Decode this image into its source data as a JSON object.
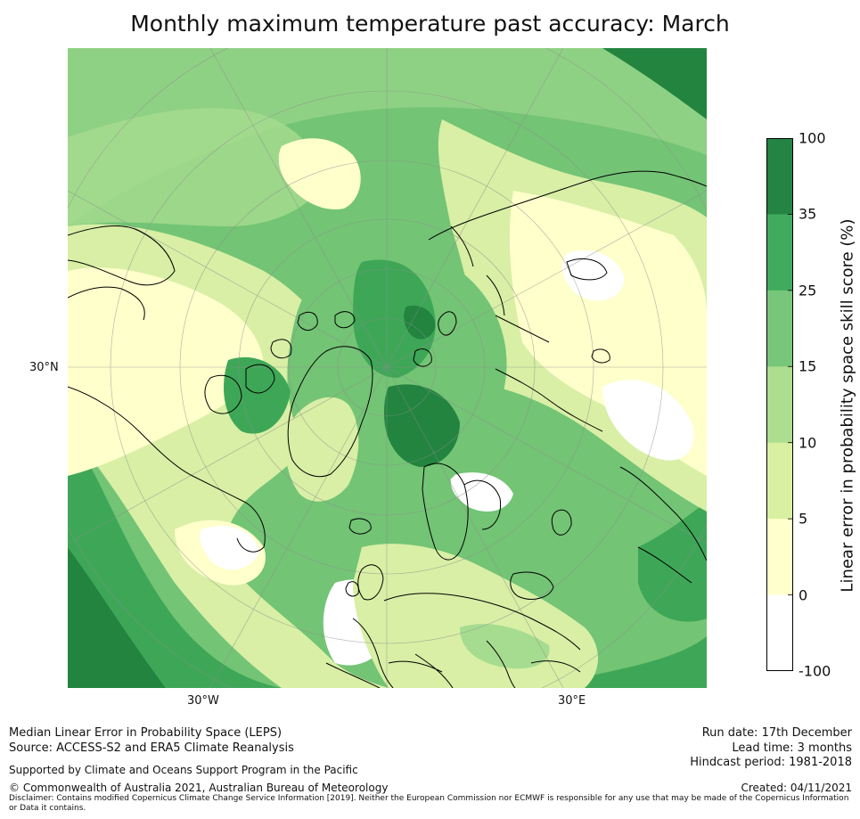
{
  "title": "Monthly maximum temperature past accuracy: March",
  "map": {
    "lat_label": "30°N",
    "lon_labels": [
      "30°W",
      "30°E"
    ],
    "palette": {
      "land_line": "#000000",
      "grid_line": "#9a9a9a"
    },
    "fields": [
      {
        "name": "deep",
        "color": "#22843f"
      },
      {
        "name": "green",
        "color": "#3ea757"
      },
      {
        "name": "mid",
        "color": "#73c475"
      },
      {
        "name": "light",
        "color": "#a6dc90"
      },
      {
        "name": "pale",
        "color": "#d8efa5"
      },
      {
        "name": "cream",
        "color": "#ffffcc"
      }
    ]
  },
  "colorbar": {
    "label": "Linear error in probability space skill score (%)",
    "ticks": [
      "100",
      "35",
      "25",
      "15",
      "10",
      "5",
      "0",
      "-100"
    ],
    "colors": [
      "#238443",
      "#41ab5d",
      "#78c679",
      "#addd8e",
      "#d9f0a3",
      "#ffffcc",
      "#ffffff"
    ]
  },
  "footer": {
    "line1": "Median Linear Error in Probability Space (LEPS)",
    "line2": "Source: ACCESS-S2 and ERA5 Climate Reanalysis",
    "support": "Supported by Climate and Oceans Support Program in the Pacific",
    "copyright": "© Commonwealth of Australia 2021, Australian Bureau of Meteorology",
    "disclaimer": "Disclaimer: Contains modified Copernicus Climate Change Service Information [2019]. Neither the European Commission nor ECMWF is responsible for any use that may be made of the Copernicus Information or Data it contains.",
    "run_date": "Run date: 17th December",
    "lead_time": "Lead time: 3 months",
    "hindcast": "Hindcast period: 1981-2018",
    "created": "Created: 04/11/2021"
  }
}
